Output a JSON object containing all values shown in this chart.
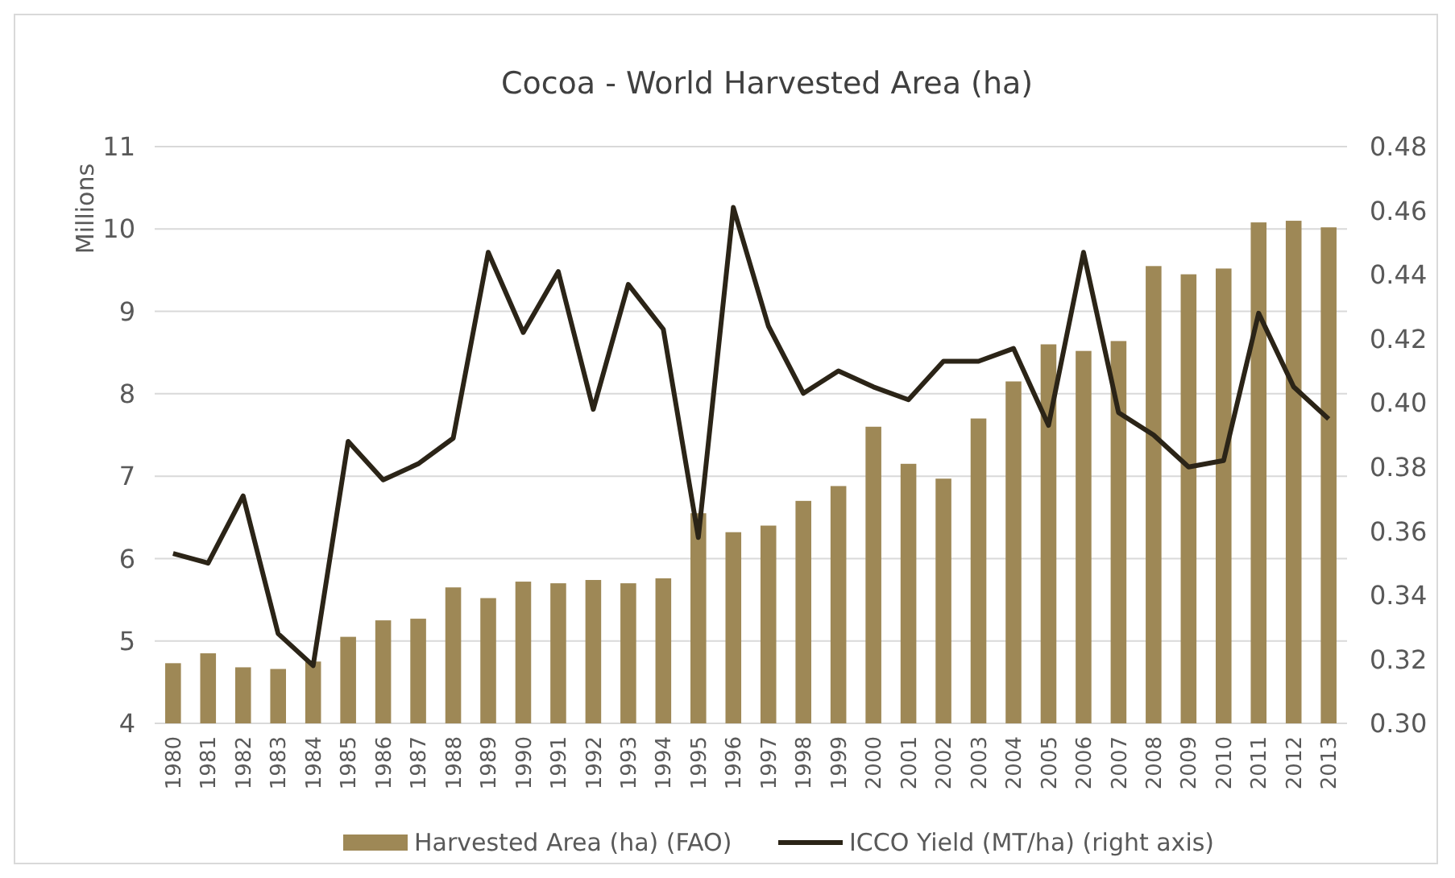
{
  "chart_data": {
    "type": "bar",
    "title": "Cocoa - World Harvested Area (ha)",
    "ylabel": "Millions",
    "categories": [
      "1980",
      "1981",
      "1982",
      "1983",
      "1984",
      "1985",
      "1986",
      "1987",
      "1988",
      "1989",
      "1990",
      "1991",
      "1992",
      "1993",
      "1994",
      "1995",
      "1996",
      "1997",
      "1998",
      "1999",
      "2000",
      "2001",
      "2002",
      "2003",
      "2004",
      "2005",
      "2006",
      "2007",
      "2008",
      "2009",
      "2010",
      "2011",
      "2012",
      "2013"
    ],
    "series": [
      {
        "name": "Harvested Area (ha) (FAO)",
        "color": "#9e8856",
        "values": [
          4.73,
          4.85,
          4.68,
          4.66,
          4.75,
          5.05,
          5.25,
          5.27,
          5.65,
          5.52,
          5.72,
          5.7,
          5.74,
          5.7,
          5.76,
          6.55,
          6.32,
          6.4,
          6.7,
          6.88,
          7.6,
          7.15,
          6.97,
          7.7,
          8.15,
          8.6,
          8.52,
          8.64,
          9.55,
          9.45,
          9.52,
          10.08,
          10.1,
          10.02
        ]
      },
      {
        "name": "ICCO Yield (MT/ha) (right axis)",
        "type": "line",
        "axis": "y2",
        "color": "#2b2417",
        "values": [
          0.353,
          0.35,
          0.371,
          0.328,
          0.318,
          0.388,
          0.376,
          0.381,
          0.389,
          0.447,
          0.422,
          0.441,
          0.398,
          0.437,
          0.423,
          0.358,
          0.461,
          0.424,
          0.403,
          0.41,
          0.405,
          0.401,
          0.413,
          0.413,
          0.417,
          0.393,
          0.447,
          0.397,
          0.39,
          0.38,
          0.382,
          0.428,
          0.405,
          0.395
        ]
      }
    ],
    "ylim": [
      4,
      11
    ],
    "yticks": [
      4,
      5,
      6,
      7,
      8,
      9,
      10,
      11
    ],
    "y2lim": [
      0.3,
      0.48
    ],
    "y2ticks": [
      {
        "value": 0.3,
        "label": "0.30"
      },
      {
        "value": 0.32,
        "label": "0.32"
      },
      {
        "value": 0.34,
        "label": "0.34"
      },
      {
        "value": 0.36,
        "label": "0.36"
      },
      {
        "value": 0.38,
        "label": "0.38"
      },
      {
        "value": 0.4,
        "label": "0.40"
      },
      {
        "value": 0.42,
        "label": "0.42"
      },
      {
        "value": 0.44,
        "label": "0.44"
      },
      {
        "value": 0.46,
        "label": "0.46"
      },
      {
        "value": 0.48,
        "label": "0.48"
      }
    ],
    "grid": "y",
    "legend": "bottom",
    "marker": "none",
    "line_style": "solid"
  }
}
